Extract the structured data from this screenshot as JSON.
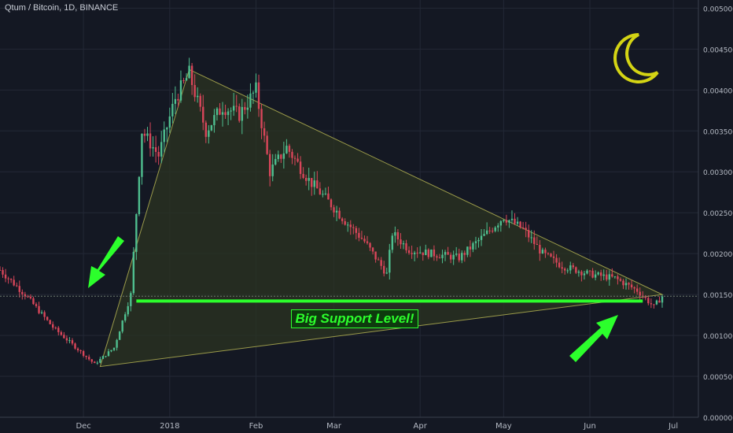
{
  "title": "Qtum / Bitcoin, 1D, BINANCE",
  "support_label": "Big Support Level!",
  "current_price_label": "0.001480",
  "colors": {
    "background": "#141823",
    "up": "#4fbf8f",
    "down": "#d9465a",
    "triangle_fill": "#2b3322",
    "triangle_stroke": "#9a9a4a",
    "support": "#2cff2c",
    "moon": "#d4d414"
  },
  "chart_data": {
    "type": "candlestick",
    "symbol": "QTUM/BTC",
    "interval": "1D",
    "exchange": "BINANCE",
    "y_ticks": [
      "0.000000",
      "0.000500",
      "0.001000",
      "0.001500",
      "0.002000",
      "0.002500",
      "0.003000",
      "0.003500",
      "0.004000",
      "0.004500",
      "0.005000"
    ],
    "x_ticks": [
      "Dec",
      "2018",
      "Feb",
      "Mar",
      "Apr",
      "May",
      "Jun",
      "Jul"
    ],
    "ylim": [
      0,
      0.0051
    ],
    "support_level": 0.00142,
    "current_price": 0.00148,
    "price_path": [
      {
        "date": "2017-11-01",
        "price": 0.0018
      },
      {
        "date": "2017-11-10",
        "price": 0.0015
      },
      {
        "date": "2017-11-20",
        "price": 0.0011
      },
      {
        "date": "2017-12-05",
        "price": 0.00065
      },
      {
        "date": "2017-12-12",
        "price": 0.00085
      },
      {
        "date": "2017-12-18",
        "price": 0.0015
      },
      {
        "date": "2017-12-22",
        "price": 0.0035
      },
      {
        "date": "2017-12-28",
        "price": 0.0032
      },
      {
        "date": "2018-01-03",
        "price": 0.0039
      },
      {
        "date": "2018-01-08",
        "price": 0.0042
      },
      {
        "date": "2018-01-14",
        "price": 0.0035
      },
      {
        "date": "2018-01-20",
        "price": 0.0038
      },
      {
        "date": "2018-01-26",
        "price": 0.0037
      },
      {
        "date": "2018-02-01",
        "price": 0.004
      },
      {
        "date": "2018-02-06",
        "price": 0.003
      },
      {
        "date": "2018-02-12",
        "price": 0.0033
      },
      {
        "date": "2018-02-20",
        "price": 0.0029
      },
      {
        "date": "2018-02-28",
        "price": 0.0026
      },
      {
        "date": "2018-03-05",
        "price": 0.0024
      },
      {
        "date": "2018-03-12",
        "price": 0.00215
      },
      {
        "date": "2018-03-20",
        "price": 0.00175
      },
      {
        "date": "2018-03-22",
        "price": 0.00225
      },
      {
        "date": "2018-03-28",
        "price": 0.00205
      },
      {
        "date": "2018-04-05",
        "price": 0.002
      },
      {
        "date": "2018-04-15",
        "price": 0.00195
      },
      {
        "date": "2018-04-25",
        "price": 0.00225
      },
      {
        "date": "2018-05-01",
        "price": 0.00245
      },
      {
        "date": "2018-05-08",
        "price": 0.0023
      },
      {
        "date": "2018-05-15",
        "price": 0.002
      },
      {
        "date": "2018-05-22",
        "price": 0.00185
      },
      {
        "date": "2018-06-01",
        "price": 0.00175
      },
      {
        "date": "2018-06-10",
        "price": 0.0017
      },
      {
        "date": "2018-06-18",
        "price": 0.00155
      },
      {
        "date": "2018-06-24",
        "price": 0.00135
      },
      {
        "date": "2018-06-27",
        "price": 0.00148
      }
    ],
    "triangle": [
      {
        "date": "2017-12-07",
        "price": 0.00062
      },
      {
        "date": "2018-01-08",
        "price": 0.00425
      },
      {
        "date": "2018-06-27",
        "price": 0.0015
      }
    ]
  }
}
